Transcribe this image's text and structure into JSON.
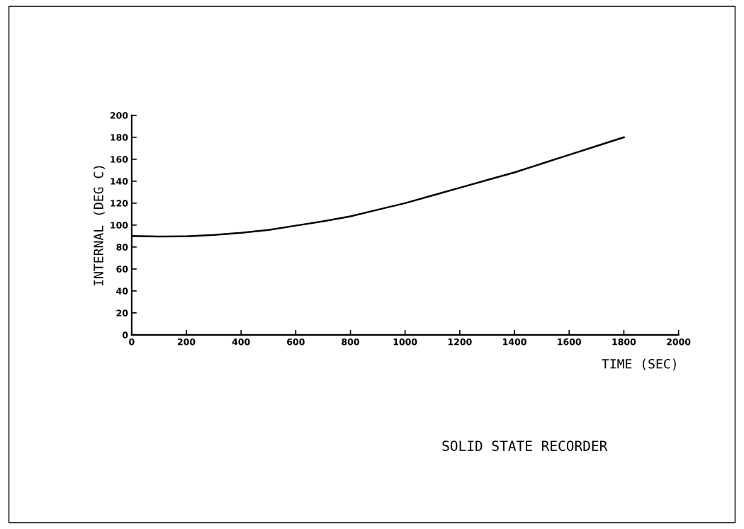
{
  "chart_data": {
    "type": "line",
    "title": "SOLID STATE RECORDER",
    "xlabel": "TIME (SEC)",
    "ylabel": "INTERNAL (DEG C)",
    "x": [
      0,
      100,
      200,
      300,
      400,
      500,
      600,
      700,
      800,
      900,
      1000,
      1100,
      1200,
      1300,
      1400,
      1500,
      1600,
      1700,
      1800
    ],
    "series": [
      {
        "color": "#000000",
        "values": [
          90,
          89.5,
          89.8,
          91,
          92.9,
          95.5,
          99.5,
          103.5,
          108,
          114,
          120,
          127,
          134,
          141,
          148,
          156,
          164,
          172,
          180
        ]
      }
    ],
    "xlim": [
      0,
      2000
    ],
    "ylim": [
      0,
      200
    ],
    "xticks": [
      0,
      200,
      400,
      600,
      800,
      1000,
      1200,
      1400,
      1600,
      1800,
      2000
    ],
    "yticks": [
      0,
      20,
      40,
      60,
      80,
      100,
      120,
      140,
      160,
      180,
      200
    ],
    "grid": false,
    "marker": "none",
    "line_style": "solid"
  }
}
